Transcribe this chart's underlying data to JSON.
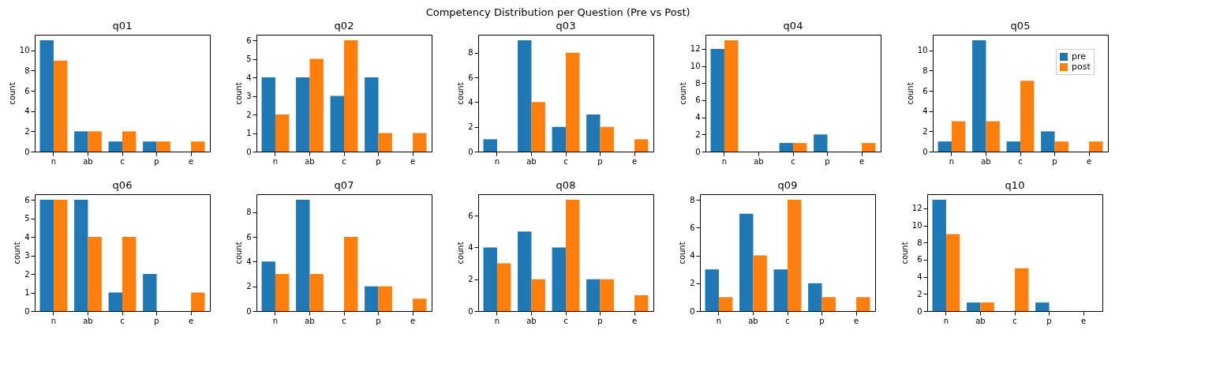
{
  "chart_data": [
    {
      "type": "bar",
      "title": "q01",
      "ylabel": "count",
      "categories": [
        "n",
        "ab",
        "c",
        "p",
        "e"
      ],
      "annotations": [
        "Competency Distribution per Question (Pre vs Post)"
      ],
      "series": [
        {
          "color": "#1f77b4",
          "values": [
            11,
            2,
            1,
            1,
            0
          ]
        },
        {
          "color": "#ff7f0e",
          "values": [
            9,
            2,
            2,
            1,
            1
          ]
        }
      ],
      "ylim": [
        0,
        11.55
      ],
      "yticks": [
        0,
        2,
        4,
        6,
        8,
        10
      ]
    },
    {
      "type": "bar",
      "title": "q02",
      "ylabel": "count",
      "categories": [
        "n",
        "ab",
        "c",
        "p",
        "e"
      ],
      "series": [
        {
          "color": "#1f77b4",
          "values": [
            4,
            4,
            3,
            4,
            0
          ]
        },
        {
          "color": "#ff7f0e",
          "values": [
            2,
            5,
            6,
            1,
            1
          ]
        }
      ],
      "ylim": [
        0,
        6.3
      ],
      "yticks": [
        0,
        1,
        2,
        3,
        4,
        5,
        6
      ]
    },
    {
      "type": "bar",
      "title": "q03",
      "ylabel": "count",
      "categories": [
        "n",
        "ab",
        "c",
        "p",
        "e"
      ],
      "series": [
        {
          "color": "#1f77b4",
          "values": [
            1,
            9,
            2,
            3,
            0
          ]
        },
        {
          "color": "#ff7f0e",
          "values": [
            0,
            4,
            8,
            2,
            1
          ]
        }
      ],
      "ylim": [
        0,
        9.45
      ],
      "yticks": [
        0,
        2,
        4,
        6,
        8
      ]
    },
    {
      "type": "bar",
      "title": "q04",
      "ylabel": "count",
      "categories": [
        "n",
        "ab",
        "c",
        "p",
        "e"
      ],
      "series": [
        {
          "color": "#1f77b4",
          "values": [
            12,
            0,
            1,
            2,
            0
          ]
        },
        {
          "color": "#ff7f0e",
          "values": [
            13,
            0,
            1,
            0,
            1
          ]
        }
      ],
      "ylim": [
        0,
        13.65
      ],
      "yticks": [
        0,
        2,
        4,
        6,
        8,
        10,
        12
      ]
    },
    {
      "type": "bar",
      "title": "q05",
      "ylabel": "count",
      "categories": [
        "n",
        "ab",
        "c",
        "p",
        "e"
      ],
      "legend": "top right",
      "series": [
        {
          "name": "pre",
          "color": "#1f77b4",
          "values": [
            1,
            11,
            1,
            2,
            0
          ]
        },
        {
          "name": "post",
          "color": "#ff7f0e",
          "values": [
            3,
            3,
            7,
            1,
            1
          ]
        }
      ],
      "ylim": [
        0,
        11.55
      ],
      "yticks": [
        0,
        2,
        4,
        6,
        8,
        10
      ]
    },
    {
      "type": "bar",
      "title": "q06",
      "ylabel": "count",
      "categories": [
        "n",
        "ab",
        "c",
        "p",
        "e"
      ],
      "series": [
        {
          "color": "#1f77b4",
          "values": [
            6,
            6,
            1,
            2,
            0
          ]
        },
        {
          "color": "#ff7f0e",
          "values": [
            6,
            4,
            4,
            0,
            1
          ]
        }
      ],
      "ylim": [
        0,
        6.3
      ],
      "yticks": [
        0,
        1,
        2,
        3,
        4,
        5,
        6
      ]
    },
    {
      "type": "bar",
      "title": "q07",
      "ylabel": "count",
      "categories": [
        "n",
        "ab",
        "c",
        "p",
        "e"
      ],
      "series": [
        {
          "color": "#1f77b4",
          "values": [
            4,
            9,
            0,
            2,
            0
          ]
        },
        {
          "color": "#ff7f0e",
          "values": [
            3,
            3,
            6,
            2,
            1
          ]
        }
      ],
      "ylim": [
        0,
        9.45
      ],
      "yticks": [
        0,
        2,
        4,
        6,
        8
      ]
    },
    {
      "type": "bar",
      "title": "q08",
      "ylabel": "count",
      "categories": [
        "n",
        "ab",
        "c",
        "p",
        "e"
      ],
      "series": [
        {
          "color": "#1f77b4",
          "values": [
            4,
            5,
            4,
            2,
            0
          ]
        },
        {
          "color": "#ff7f0e",
          "values": [
            3,
            2,
            7,
            2,
            1
          ]
        }
      ],
      "ylim": [
        0,
        7.35
      ],
      "yticks": [
        0,
        2,
        4,
        6
      ]
    },
    {
      "type": "bar",
      "title": "q09",
      "ylabel": "count",
      "categories": [
        "n",
        "ab",
        "c",
        "p",
        "e"
      ],
      "series": [
        {
          "color": "#1f77b4",
          "values": [
            3,
            7,
            3,
            2,
            0
          ]
        },
        {
          "color": "#ff7f0e",
          "values": [
            1,
            4,
            8,
            1,
            1
          ]
        }
      ],
      "ylim": [
        0,
        8.4
      ],
      "yticks": [
        0,
        2,
        4,
        6,
        8
      ]
    },
    {
      "type": "bar",
      "title": "q10",
      "ylabel": "count",
      "categories": [
        "n",
        "ab",
        "c",
        "p",
        "e"
      ],
      "series": [
        {
          "color": "#1f77b4",
          "values": [
            13,
            1,
            0,
            1,
            0
          ]
        },
        {
          "color": "#ff7f0e",
          "values": [
            9,
            1,
            5,
            0,
            0
          ]
        }
      ],
      "ylim": [
        0,
        13.65
      ],
      "yticks": [
        0,
        2,
        4,
        6,
        8,
        10,
        12
      ]
    }
  ]
}
